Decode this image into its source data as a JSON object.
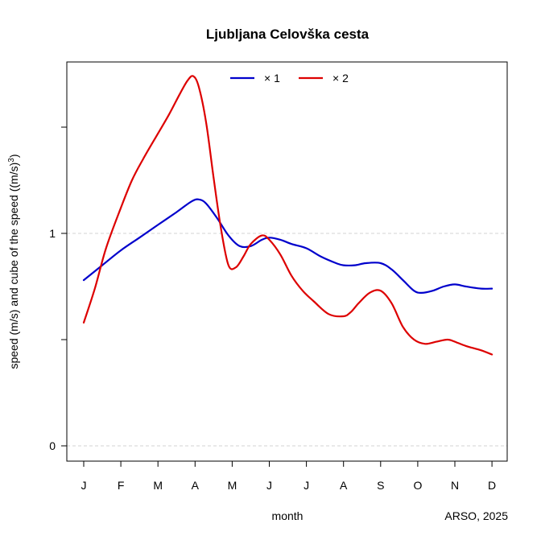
{
  "chart_data": {
    "type": "line",
    "title": "Ljubljana Celovška cesta",
    "xlabel": "month",
    "ylabel": "speed (m/s) and cube of the speed ((m/s)",
    "ylabel_superscript": "3",
    "ylabel_end": ")",
    "caption": "ARSO, 2025",
    "categories": [
      "J",
      "F",
      "M",
      "A",
      "M",
      "J",
      "J",
      "A",
      "S",
      "O",
      "N",
      "D"
    ],
    "y_ticks": [
      {
        "value": 0,
        "label": "0"
      },
      {
        "value": 1,
        "label": "1"
      }
    ],
    "ylim": [
      -0.07,
      1.8
    ],
    "gridlines": [
      0,
      1
    ],
    "legend_position": "top",
    "series": [
      {
        "name": "× 1",
        "color": "#0000cc",
        "x": [
          1.0,
          1.5,
          2.0,
          2.5,
          3.0,
          3.5,
          3.9,
          4.1,
          4.3,
          4.6,
          4.9,
          5.2,
          5.5,
          5.8,
          6.0,
          6.3,
          6.6,
          7.0,
          7.4,
          7.8,
          8.0,
          8.3,
          8.6,
          9.0,
          9.3,
          9.6,
          9.9,
          10.1,
          10.4,
          10.7,
          11.0,
          11.3,
          11.7,
          12.0
        ],
        "values": [
          0.78,
          0.85,
          0.92,
          0.98,
          1.04,
          1.1,
          1.15,
          1.16,
          1.14,
          1.07,
          0.99,
          0.94,
          0.94,
          0.97,
          0.98,
          0.97,
          0.95,
          0.93,
          0.89,
          0.86,
          0.85,
          0.85,
          0.86,
          0.86,
          0.83,
          0.78,
          0.73,
          0.72,
          0.73,
          0.75,
          0.76,
          0.75,
          0.74,
          0.74
        ]
      },
      {
        "name": "× 2",
        "color": "#dd0000",
        "x": [
          1.0,
          1.3,
          1.6,
          2.0,
          2.3,
          2.6,
          3.0,
          3.3,
          3.6,
          3.8,
          3.95,
          4.1,
          4.3,
          4.5,
          4.7,
          4.9,
          5.1,
          5.3,
          5.5,
          5.8,
          6.0,
          6.3,
          6.6,
          6.9,
          7.2,
          7.6,
          8.0,
          8.2,
          8.4,
          8.7,
          9.0,
          9.3,
          9.6,
          9.9,
          10.2,
          10.5,
          10.8,
          11.0,
          11.3,
          11.7,
          12.0
        ],
        "values": [
          0.58,
          0.74,
          0.93,
          1.12,
          1.25,
          1.35,
          1.47,
          1.56,
          1.66,
          1.72,
          1.74,
          1.69,
          1.52,
          1.26,
          1.02,
          0.85,
          0.84,
          0.89,
          0.95,
          0.99,
          0.97,
          0.9,
          0.8,
          0.73,
          0.68,
          0.62,
          0.61,
          0.63,
          0.67,
          0.72,
          0.73,
          0.67,
          0.56,
          0.5,
          0.48,
          0.49,
          0.5,
          0.49,
          0.47,
          0.45,
          0.43
        ]
      }
    ]
  }
}
